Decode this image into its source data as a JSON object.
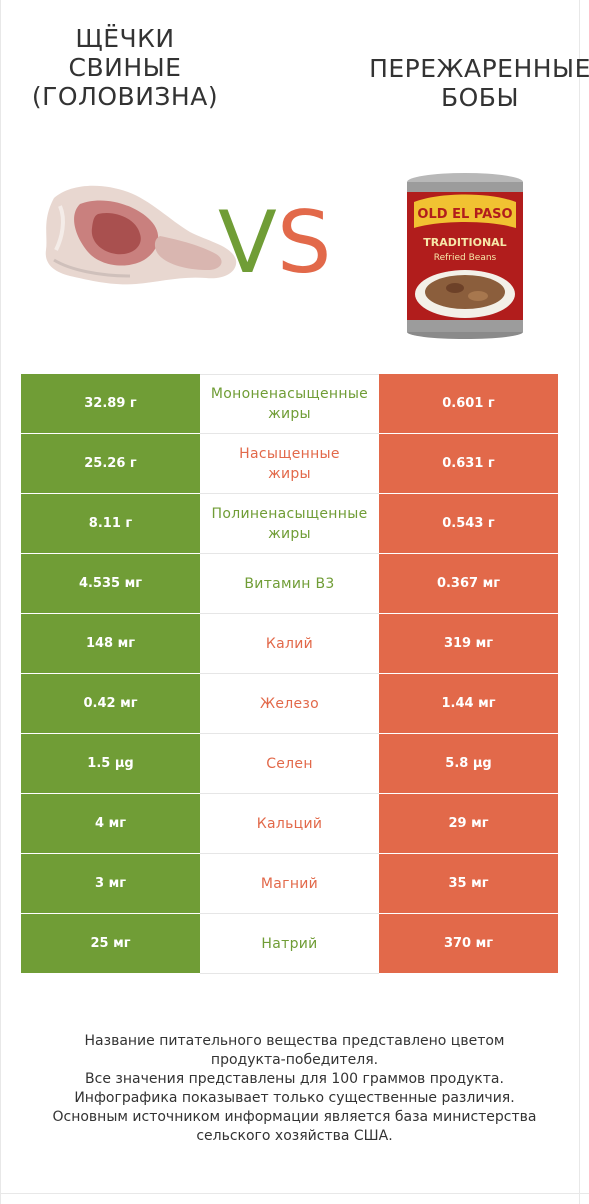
{
  "left_food": {
    "title_lines": [
      "ЩЁЧКИ",
      "СВИНЫЕ",
      "(ГОЛОВИЗНА)"
    ],
    "image": "pork-cheek-meat-image"
  },
  "right_food": {
    "title_lines": [
      "ПЕРЕЖАРЕННЫЕ",
      "БОБЫ"
    ],
    "image": "refried-beans-can-image",
    "can_brand": "OLD EL PASO",
    "can_label_1": "TRADITIONAL",
    "can_label_2": "Refried Beans"
  },
  "vs": {
    "v": "V",
    "s": "S"
  },
  "colors": {
    "left": "#709d36",
    "right": "#e2694a"
  },
  "rows": [
    {
      "left": "32.89 г",
      "nutrient_lines": [
        "Мононенасыщенные",
        "жиры"
      ],
      "right": "0.601 г",
      "winner": "left"
    },
    {
      "left": "25.26 г",
      "nutrient_lines": [
        "Насыщенные",
        "жиры"
      ],
      "right": "0.631 г",
      "winner": "right"
    },
    {
      "left": "8.11 г",
      "nutrient_lines": [
        "Полиненасыщенные",
        "жиры"
      ],
      "right": "0.543 г",
      "winner": "left"
    },
    {
      "left": "4.535 мг",
      "nutrient_lines": [
        "Витамин B3"
      ],
      "right": "0.367 мг",
      "winner": "left"
    },
    {
      "left": "148 мг",
      "nutrient_lines": [
        "Калий"
      ],
      "right": "319 мг",
      "winner": "right"
    },
    {
      "left": "0.42 мг",
      "nutrient_lines": [
        "Железо"
      ],
      "right": "1.44 мг",
      "winner": "right"
    },
    {
      "left": "1.5 µg",
      "nutrient_lines": [
        "Селен"
      ],
      "right": "5.8 µg",
      "winner": "right"
    },
    {
      "left": "4 мг",
      "nutrient_lines": [
        "Кальций"
      ],
      "right": "29 мг",
      "winner": "right"
    },
    {
      "left": "3 мг",
      "nutrient_lines": [
        "Магний"
      ],
      "right": "35 мг",
      "winner": "right"
    },
    {
      "left": "25 мг",
      "nutrient_lines": [
        "Натрий"
      ],
      "right": "370 мг",
      "winner": "left"
    }
  ],
  "footnote_lines": [
    "Название питательного вещества представлено цветом",
    "продукта-победителя.",
    "Все значения представлены для 100 граммов продукта.",
    "Инфографика показывает только существенные различия.",
    "Основным источником информации является база министерства",
    "сельского хозяйства США."
  ]
}
